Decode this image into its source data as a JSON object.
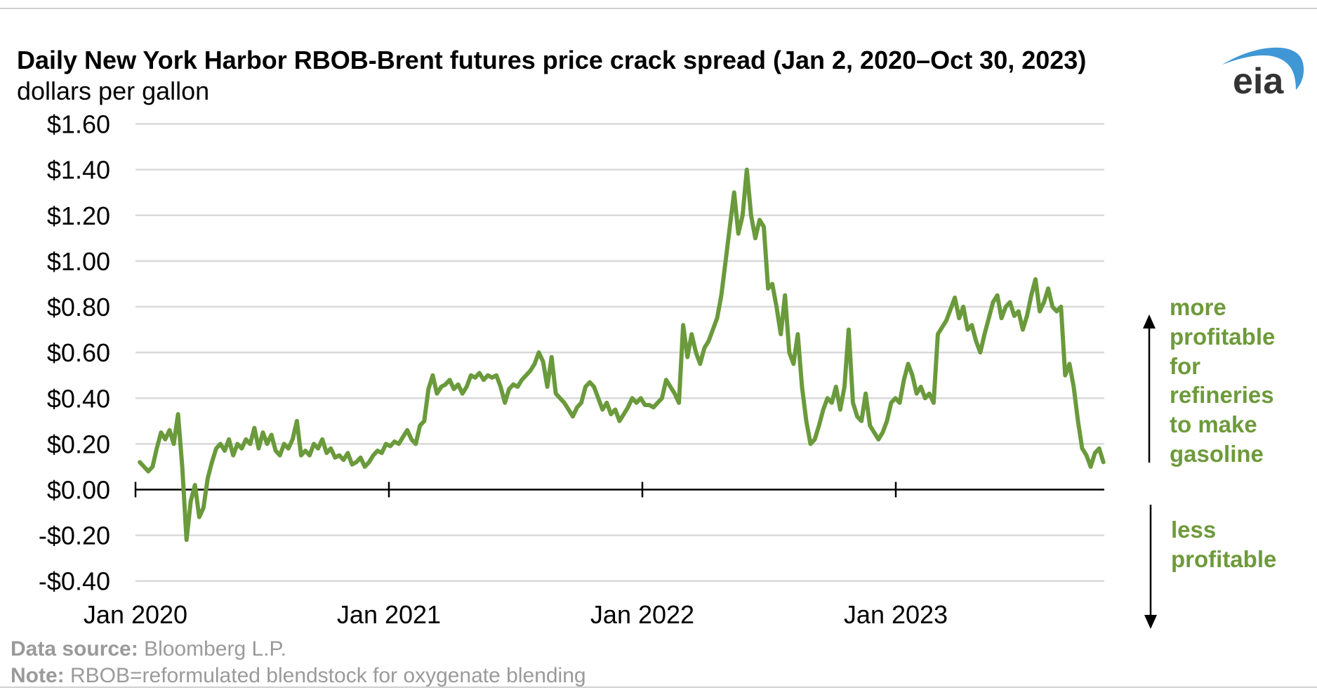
{
  "colors": {
    "series": "#6a9a3c",
    "annotation": "#6e9a3b",
    "grid": "#d9d9d9",
    "logo_arc": "#3f97d6",
    "logo_text": "#333333"
  },
  "logo": {
    "text": "eia"
  },
  "chart_data": {
    "type": "line",
    "title": "Daily New York Harbor RBOB-Brent futures price crack spread (Jan 2, 2020–Oct 30, 2023)",
    "ylabel": "dollars per gallon",
    "xlabel": "",
    "ylim": [
      -0.4,
      1.6
    ],
    "xlim": [
      2020.0,
      2023.83
    ],
    "grid": true,
    "y_ticks": [
      {
        "value": 1.6,
        "label": "$1.60"
      },
      {
        "value": 1.4,
        "label": "$1.40"
      },
      {
        "value": 1.2,
        "label": "$1.20"
      },
      {
        "value": 1.0,
        "label": "$1.00"
      },
      {
        "value": 0.8,
        "label": "$0.80"
      },
      {
        "value": 0.6,
        "label": "$0.60"
      },
      {
        "value": 0.4,
        "label": "$0.40"
      },
      {
        "value": 0.2,
        "label": "$0.20"
      },
      {
        "value": 0.0,
        "label": "$0.00"
      },
      {
        "value": -0.2,
        "label": "-$0.20"
      },
      {
        "value": -0.4,
        "label": "-$0.40"
      }
    ],
    "x_ticks": [
      {
        "value": 2020.0,
        "label": "Jan 2020"
      },
      {
        "value": 2021.0,
        "label": "Jan 2021"
      },
      {
        "value": 2022.0,
        "label": "Jan 2022"
      },
      {
        "value": 2023.0,
        "label": "Jan 2023"
      }
    ],
    "series": [
      {
        "name": "RBOB-Brent crack spread",
        "x_start": 2020.017,
        "x_step": 0.01675,
        "values": [
          0.12,
          0.1,
          0.08,
          0.1,
          0.18,
          0.25,
          0.22,
          0.26,
          0.2,
          0.33,
          0.1,
          -0.22,
          -0.05,
          0.02,
          -0.12,
          -0.08,
          0.05,
          0.12,
          0.18,
          0.2,
          0.17,
          0.22,
          0.15,
          0.2,
          0.18,
          0.22,
          0.2,
          0.27,
          0.18,
          0.25,
          0.2,
          0.24,
          0.17,
          0.15,
          0.2,
          0.18,
          0.22,
          0.3,
          0.15,
          0.17,
          0.15,
          0.2,
          0.18,
          0.22,
          0.16,
          0.18,
          0.14,
          0.15,
          0.13,
          0.16,
          0.11,
          0.12,
          0.14,
          0.1,
          0.12,
          0.15,
          0.17,
          0.16,
          0.2,
          0.19,
          0.21,
          0.2,
          0.23,
          0.26,
          0.22,
          0.2,
          0.28,
          0.3,
          0.44,
          0.5,
          0.42,
          0.45,
          0.46,
          0.48,
          0.44,
          0.46,
          0.42,
          0.45,
          0.5,
          0.49,
          0.51,
          0.48,
          0.5,
          0.49,
          0.5,
          0.45,
          0.38,
          0.44,
          0.46,
          0.45,
          0.48,
          0.5,
          0.52,
          0.55,
          0.6,
          0.56,
          0.45,
          0.58,
          0.42,
          0.4,
          0.38,
          0.35,
          0.32,
          0.36,
          0.38,
          0.45,
          0.47,
          0.45,
          0.4,
          0.35,
          0.38,
          0.33,
          0.35,
          0.3,
          0.33,
          0.36,
          0.4,
          0.38,
          0.4,
          0.37,
          0.37,
          0.36,
          0.38,
          0.4,
          0.48,
          0.45,
          0.42,
          0.38,
          0.72,
          0.58,
          0.68,
          0.6,
          0.55,
          0.62,
          0.65,
          0.7,
          0.75,
          0.85,
          1.0,
          1.15,
          1.3,
          1.12,
          1.2,
          1.4,
          1.2,
          1.1,
          1.18,
          1.15,
          0.88,
          0.9,
          0.8,
          0.68,
          0.85,
          0.6,
          0.55,
          0.68,
          0.45,
          0.3,
          0.2,
          0.22,
          0.28,
          0.35,
          0.4,
          0.38,
          0.45,
          0.35,
          0.45,
          0.7,
          0.38,
          0.32,
          0.3,
          0.42,
          0.28,
          0.25,
          0.22,
          0.25,
          0.3,
          0.38,
          0.4,
          0.38,
          0.48,
          0.55,
          0.5,
          0.42,
          0.45,
          0.4,
          0.42,
          0.38,
          0.68,
          0.71,
          0.74,
          0.79,
          0.84,
          0.75,
          0.8,
          0.7,
          0.72,
          0.65,
          0.6,
          0.68,
          0.75,
          0.82,
          0.85,
          0.75,
          0.8,
          0.82,
          0.76,
          0.78,
          0.7,
          0.76,
          0.85,
          0.92,
          0.78,
          0.82,
          0.88,
          0.8,
          0.78,
          0.8,
          0.5,
          0.55,
          0.45,
          0.3,
          0.18,
          0.15,
          0.1,
          0.16,
          0.18,
          0.12
        ]
      }
    ],
    "annotations": {
      "up": [
        "more",
        "profitable",
        "for",
        "refineries",
        "to make",
        "gasoline"
      ],
      "down": [
        "less",
        "profitable"
      ]
    },
    "legend": "none"
  },
  "footer": {
    "source_label": "Data source:",
    "source_value": " Bloomberg L.P.",
    "note_label": "Note:",
    "note_value": " RBOB=reformulated blendstock for oxygenate blending"
  }
}
